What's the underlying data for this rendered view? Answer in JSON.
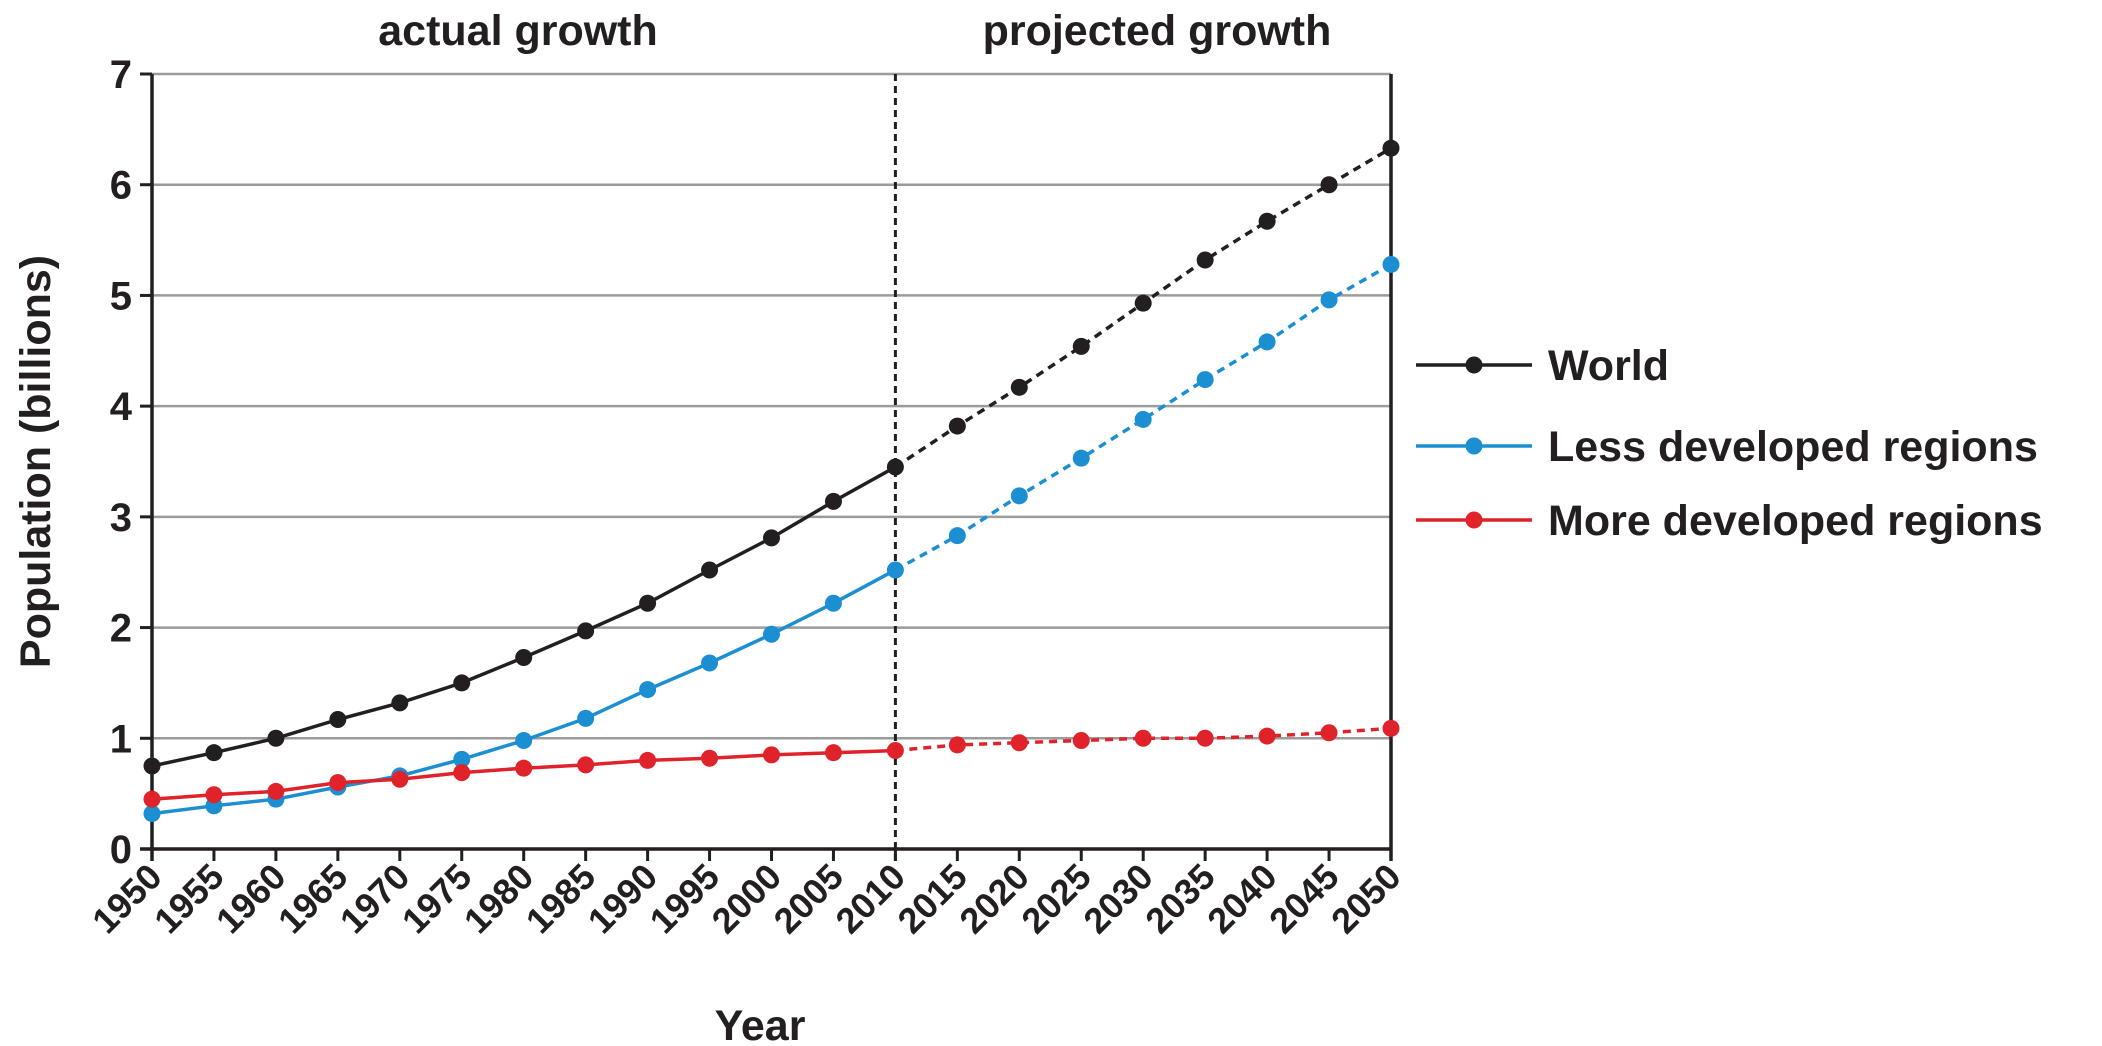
{
  "chart_data": {
    "type": "line",
    "xlabel": "Year",
    "ylabel": "Population (billions)",
    "ylim": [
      0,
      7
    ],
    "yticks": [
      0,
      1,
      2,
      3,
      4,
      5,
      6,
      7
    ],
    "x": [
      1950,
      1955,
      1960,
      1965,
      1970,
      1975,
      1980,
      1985,
      1990,
      1995,
      2000,
      2005,
      2010,
      2015,
      2020,
      2025,
      2030,
      2035,
      2040,
      2045,
      2050
    ],
    "split_year": 2010,
    "regions": {
      "actual": "actual growth",
      "projected": "projected growth"
    },
    "grid": "horizontal",
    "legend_position": "right",
    "series": [
      {
        "name": "World",
        "color": "#231f20",
        "values": [
          0.75,
          0.87,
          1.0,
          1.17,
          1.32,
          1.5,
          1.73,
          1.97,
          2.22,
          2.52,
          2.81,
          3.14,
          3.45,
          3.82,
          4.17,
          4.54,
          4.93,
          5.32,
          5.67,
          6.0,
          6.33
        ]
      },
      {
        "name": "Less developed regions",
        "color": "#1b8fd2",
        "values": [
          0.32,
          0.39,
          0.45,
          0.56,
          0.66,
          0.81,
          0.98,
          1.18,
          1.44,
          1.68,
          1.94,
          2.22,
          2.52,
          2.83,
          3.19,
          3.53,
          3.88,
          4.24,
          4.58,
          4.96,
          5.28
        ]
      },
      {
        "name": "More developed regions",
        "color": "#e0232b",
        "values": [
          0.45,
          0.49,
          0.52,
          0.6,
          0.63,
          0.69,
          0.73,
          0.76,
          0.8,
          0.82,
          0.85,
          0.87,
          0.89,
          0.94,
          0.96,
          0.98,
          1.0,
          1.0,
          1.02,
          1.05,
          1.09
        ]
      }
    ]
  }
}
